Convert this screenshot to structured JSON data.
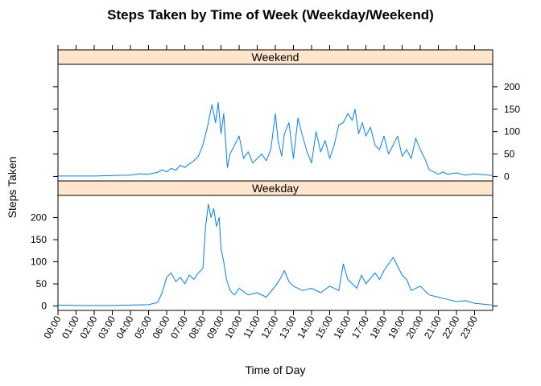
{
  "chart_data": {
    "type": "line",
    "title": "Steps Taken by Time of Week (Weekday/Weekend)",
    "xlabel": "Time of Day",
    "ylabel": "Steps Taken",
    "x_tick_labels": [
      "00:00",
      "01:00",
      "02:00",
      "03:00",
      "04:00",
      "05:00",
      "06:00",
      "07:00",
      "08:00",
      "09:00",
      "10:00",
      "11:00",
      "12:00",
      "13:00",
      "14:00",
      "15:00",
      "16:00",
      "17:00",
      "18:00",
      "19:00",
      "20:00",
      "21:00",
      "22:00",
      "23:00"
    ],
    "y_ticks": [
      0,
      50,
      100,
      150,
      200
    ],
    "ylim": [
      -10,
      250
    ],
    "line_color": "#0080ff",
    "strip_color": "#ffe5cc",
    "panels": [
      {
        "strip": "Weekend",
        "x_hours": [
          0,
          1,
          2,
          3,
          4,
          4.5,
          5,
          5.5,
          5.75,
          6,
          6.25,
          6.5,
          6.75,
          7,
          7.25,
          7.5,
          7.75,
          8,
          8.25,
          8.5,
          8.7,
          8.85,
          9,
          9.15,
          9.35,
          9.5,
          9.75,
          10,
          10.25,
          10.5,
          10.75,
          11,
          11.25,
          11.5,
          11.75,
          12,
          12.15,
          12.35,
          12.5,
          12.75,
          13,
          13.25,
          13.5,
          13.75,
          14,
          14.25,
          14.5,
          14.75,
          15,
          15.25,
          15.5,
          15.75,
          16,
          16.25,
          16.4,
          16.6,
          16.8,
          17,
          17.25,
          17.5,
          17.75,
          18,
          18.25,
          18.5,
          18.75,
          19,
          19.25,
          19.5,
          19.75,
          20,
          20.25,
          20.5,
          20.75,
          21,
          21.25,
          21.5,
          22,
          22.5,
          23,
          23.5,
          23.95
        ],
        "values": [
          1,
          1,
          1,
          2,
          3,
          6,
          5,
          9,
          15,
          10,
          18,
          14,
          25,
          20,
          28,
          35,
          45,
          70,
          110,
          160,
          120,
          165,
          95,
          140,
          20,
          50,
          70,
          90,
          40,
          55,
          30,
          40,
          50,
          35,
          60,
          140,
          80,
          45,
          95,
          120,
          40,
          130,
          90,
          55,
          30,
          100,
          55,
          80,
          40,
          70,
          115,
          120,
          140,
          125,
          150,
          95,
          120,
          90,
          110,
          70,
          60,
          90,
          50,
          70,
          90,
          45,
          60,
          40,
          85,
          60,
          40,
          15,
          10,
          5,
          10,
          5,
          8,
          3,
          6,
          4,
          2
        ],
        "ylim": [
          -10,
          250
        ]
      },
      {
        "strip": "Weekday",
        "x_hours": [
          0,
          1,
          2,
          3,
          4,
          5,
          5.5,
          5.75,
          6,
          6.25,
          6.5,
          6.75,
          7,
          7.25,
          7.5,
          7.75,
          8,
          8.15,
          8.3,
          8.45,
          8.6,
          8.75,
          8.9,
          9,
          9.15,
          9.3,
          9.5,
          9.75,
          10,
          10.5,
          11,
          11.5,
          12,
          12.25,
          12.5,
          12.75,
          13,
          13.5,
          14,
          14.5,
          15,
          15.5,
          15.75,
          16,
          16.5,
          16.75,
          17,
          17.5,
          17.75,
          18,
          18.5,
          18.75,
          19,
          19.25,
          19.5,
          20,
          20.5,
          21,
          21.5,
          22,
          22.5,
          23,
          23.5,
          23.95
        ],
        "values": [
          2,
          1,
          1,
          1,
          2,
          3,
          8,
          30,
          65,
          75,
          55,
          65,
          50,
          70,
          60,
          75,
          85,
          180,
          230,
          200,
          220,
          180,
          200,
          130,
          100,
          60,
          35,
          25,
          40,
          25,
          30,
          20,
          45,
          60,
          80,
          55,
          45,
          35,
          40,
          30,
          45,
          35,
          95,
          60,
          40,
          70,
          50,
          75,
          60,
          80,
          110,
          90,
          70,
          60,
          35,
          45,
          25,
          20,
          15,
          10,
          12,
          6,
          4,
          2
        ],
        "ylim": [
          -10,
          250
        ]
      }
    ],
    "grid": false,
    "legend": "none"
  }
}
